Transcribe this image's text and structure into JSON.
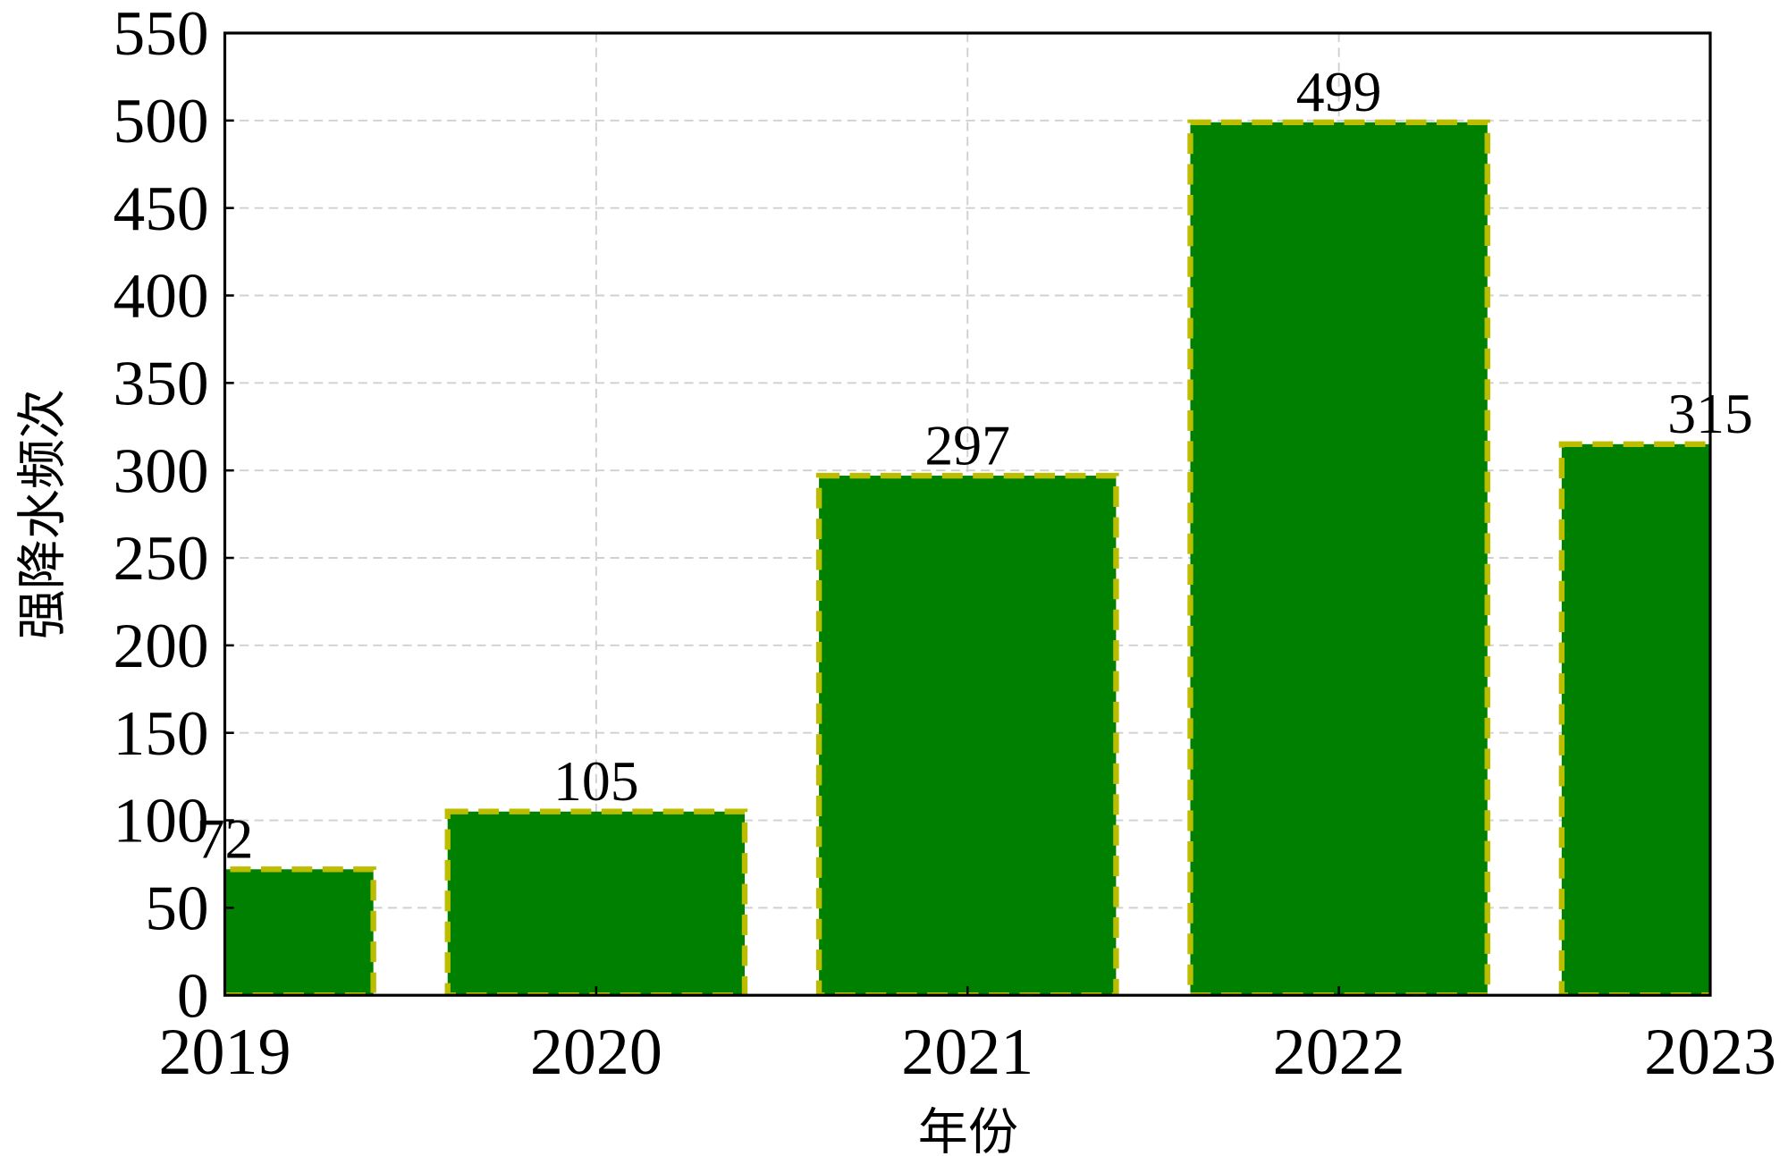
{
  "chart_data": {
    "type": "bar",
    "x": [
      2019,
      2020,
      2021,
      2022,
      2023
    ],
    "values": [
      72,
      105,
      297,
      499,
      315
    ],
    "color": "#008000",
    "edgecolor": "#bdbd00",
    "xlabel": "年份",
    "ylabel": "强降水频次",
    "xlim": [
      2019,
      2023
    ],
    "xticks": [
      2019,
      2020,
      2021,
      2022,
      2023
    ],
    "ylim": [
      0,
      550
    ],
    "yticks": [
      0,
      50,
      100,
      150,
      200,
      250,
      300,
      350,
      400,
      450,
      500,
      550
    ],
    "grid": true
  }
}
